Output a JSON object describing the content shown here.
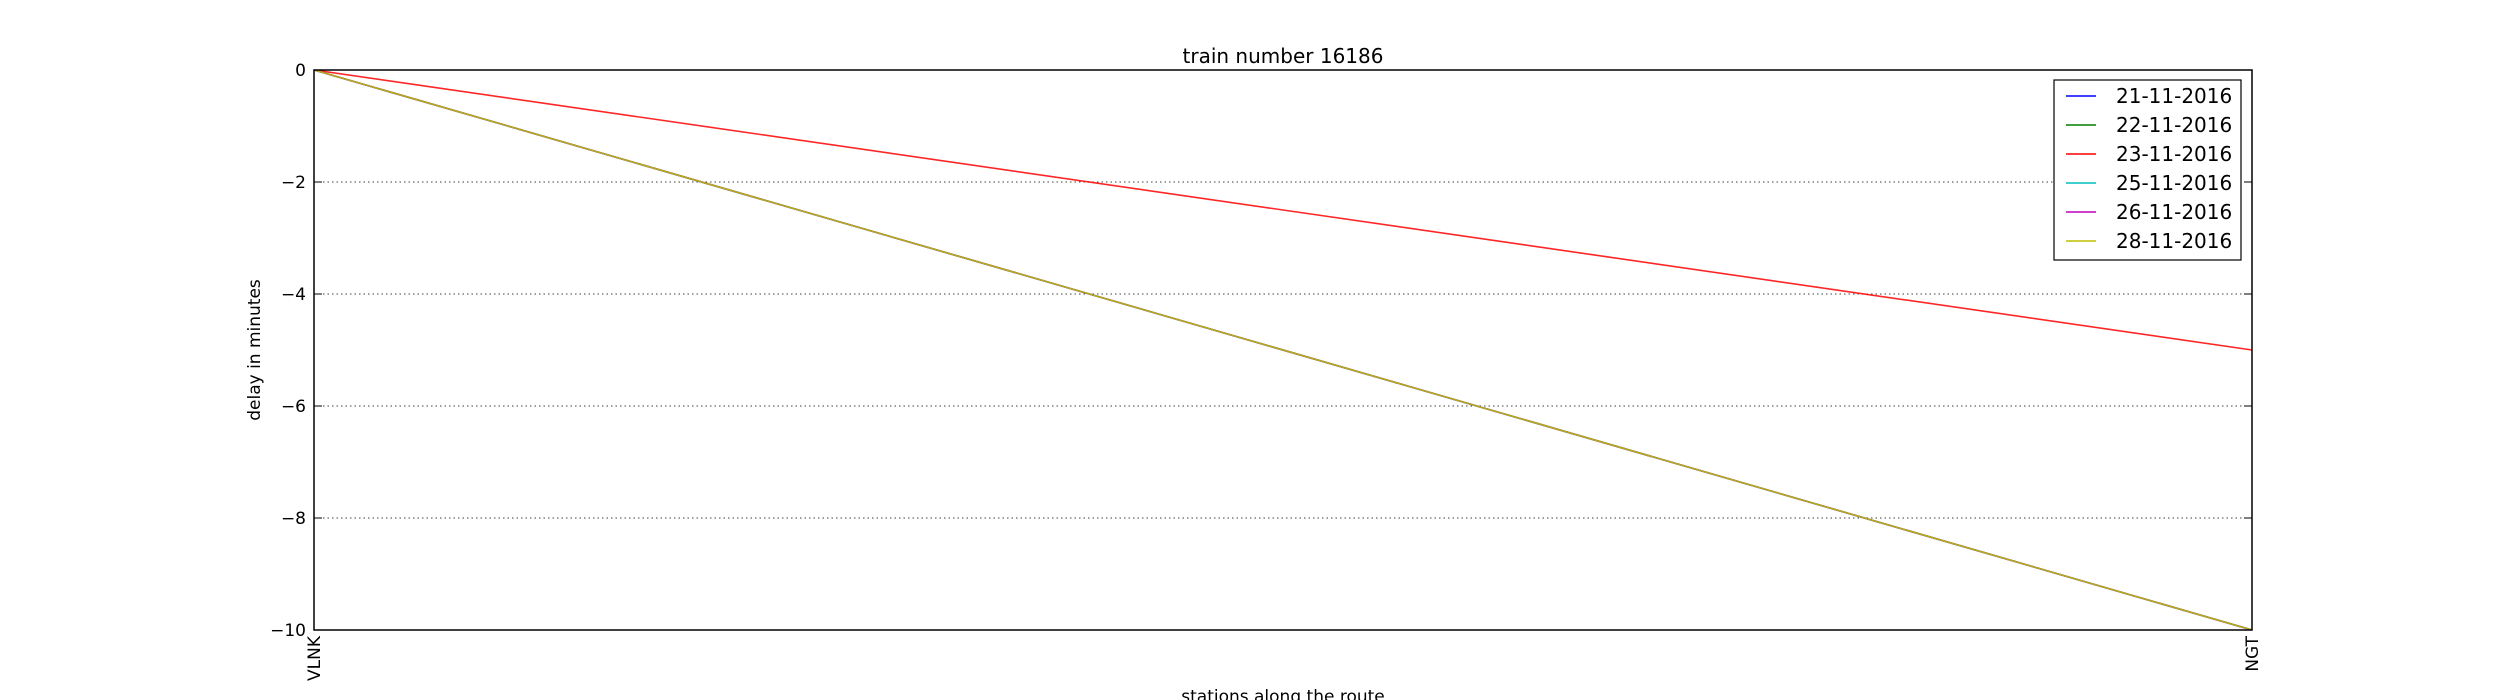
{
  "chart_data": {
    "type": "line",
    "title": "train number 16186",
    "xlabel": "stations along the route",
    "ylabel": "delay in minutes",
    "categories": [
      "VLNK",
      "NGT"
    ],
    "ylim": [
      -10,
      0
    ],
    "yticks": [
      0,
      -2,
      -4,
      -6,
      -8,
      -10
    ],
    "grid": "horizontal dotted",
    "legend_position": "top-right",
    "series": [
      {
        "name": "21-11-2016",
        "color": "#0000ff",
        "values": [
          0,
          -10
        ]
      },
      {
        "name": "22-11-2016",
        "color": "#008000",
        "values": [
          0,
          -10
        ]
      },
      {
        "name": "23-11-2016",
        "color": "#ff0000",
        "values": [
          0,
          -5
        ]
      },
      {
        "name": "25-11-2016",
        "color": "#00bfbf",
        "values": [
          0,
          -10
        ]
      },
      {
        "name": "26-11-2016",
        "color": "#bf00bf",
        "values": [
          0,
          -10
        ]
      },
      {
        "name": "28-11-2016",
        "color": "#bfbf00",
        "values": [
          0,
          -10
        ]
      }
    ]
  }
}
